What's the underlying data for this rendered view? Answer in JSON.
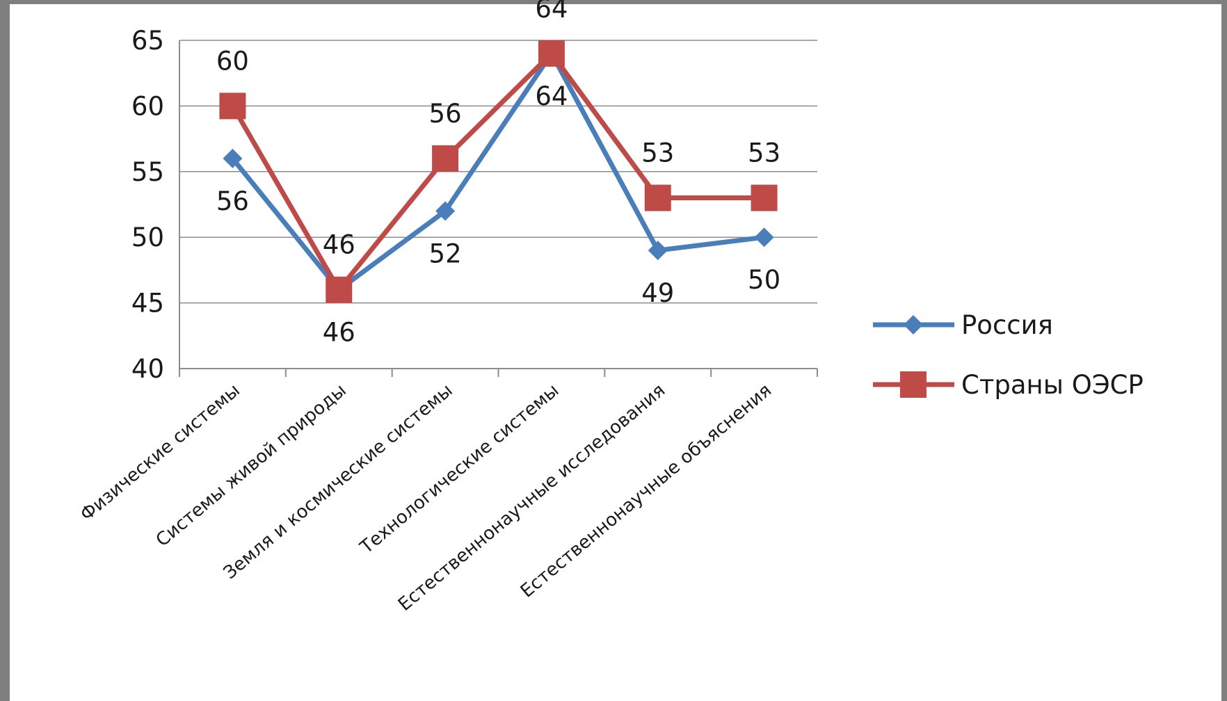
{
  "chart_data": {
    "type": "line",
    "categories": [
      "Физические системы",
      "Системы живой природы",
      "Земля и космические системы",
      "Технологические системы",
      "Естественнонаучные исследования",
      "Естественнонаучные объяснения"
    ],
    "series": [
      {
        "name": "Россия",
        "values": [
          56,
          46,
          52,
          64,
          49,
          50
        ],
        "color": "#4a7ebb",
        "marker": "diamond",
        "label_position": "below"
      },
      {
        "name": "Страны ОЭСР",
        "values": [
          60,
          46,
          56,
          64,
          53,
          53
        ],
        "color": "#be4b48",
        "marker": "square",
        "label_position": "above"
      }
    ],
    "yticks": [
      "40",
      "45",
      "50",
      "55",
      "60",
      "65"
    ],
    "ylim": [
      40,
      65
    ],
    "grid": "horizontal",
    "legend_position": "right",
    "title": "",
    "xlabel": "",
    "ylabel": ""
  }
}
